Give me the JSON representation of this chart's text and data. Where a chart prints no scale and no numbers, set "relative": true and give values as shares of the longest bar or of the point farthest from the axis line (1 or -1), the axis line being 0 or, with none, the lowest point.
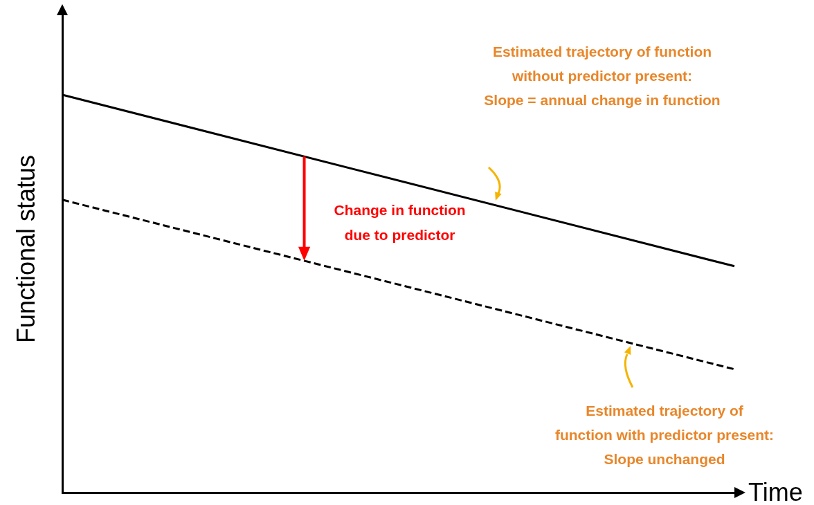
{
  "chart_data": {
    "type": "line",
    "relative": true,
    "xlabel": "Time",
    "ylabel": "Functional status",
    "categories": [
      null,
      null
    ],
    "series": [
      {
        "color": "#000000",
        "line_style": "solid",
        "values": [
          1,
          0.569
        ]
      },
      {
        "color": "#000000",
        "line_style": "dashed",
        "values": [
          0.736,
          0.31
        ]
      }
    ],
    "marker": "none",
    "grid": false,
    "legend": false,
    "tick_labels": false,
    "annotations": [
      "Estimated trajectory of function\nwithout predictor present:\nSlope = annual change in function",
      "Change in function\ndue to predictor",
      "Estimated trajectory of\nfunction with predictor present:\nSlope unchanged"
    ]
  }
}
